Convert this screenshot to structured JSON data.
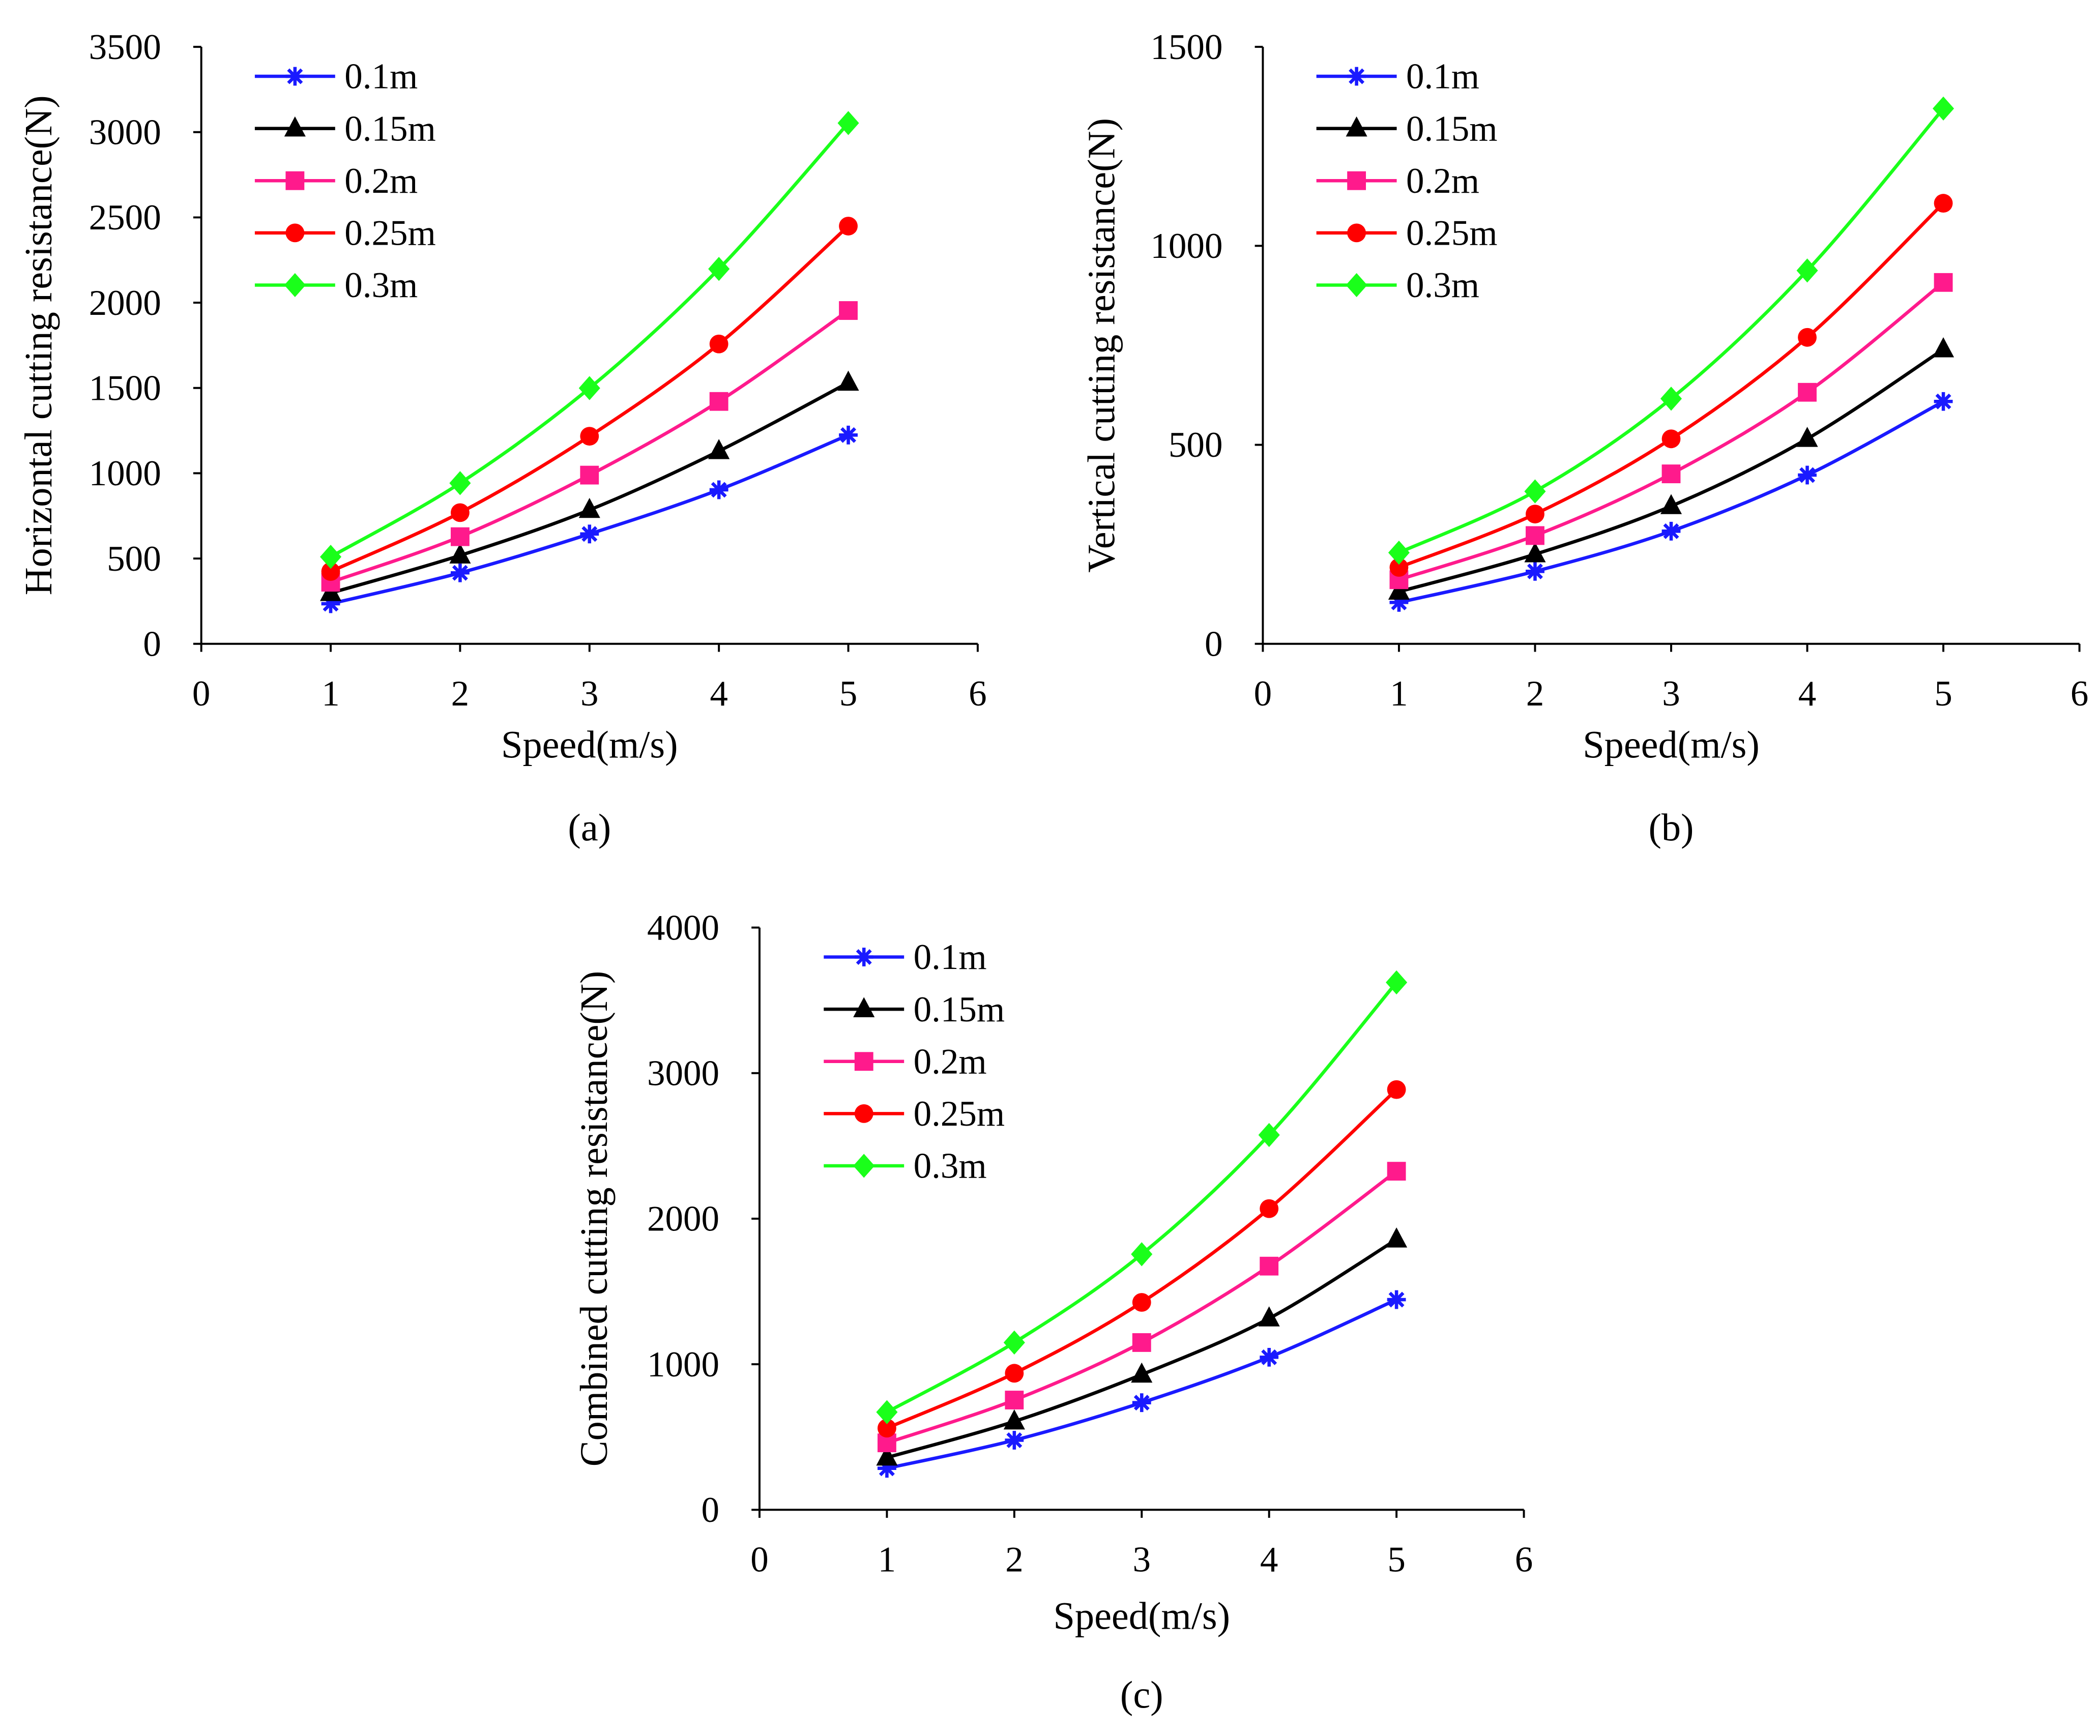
{
  "series_style": [
    {
      "name": "0.1m",
      "color": "#1a1aff",
      "marker": "asterisk"
    },
    {
      "name": "0.15m",
      "color": "#000000",
      "marker": "triangle"
    },
    {
      "name": "0.2m",
      "color": "#ff1a8c",
      "marker": "square"
    },
    {
      "name": "0.25m",
      "color": "#ff0000",
      "marker": "circle"
    },
    {
      "name": "0.3m",
      "color": "#1aff1a",
      "marker": "diamond"
    }
  ],
  "chart_data": [
    {
      "type": "line",
      "panel_label": "(a)",
      "xlabel": "Speed(m/s)",
      "ylabel": "Horizontal cutting resistance(N)",
      "xlim": [
        0,
        6
      ],
      "ylim": [
        0,
        3500
      ],
      "xticks": [
        0,
        1,
        2,
        3,
        4,
        5,
        6
      ],
      "yticks": [
        0,
        500,
        1000,
        1500,
        2000,
        2500,
        3000,
        3500
      ],
      "legend_position": "top-left",
      "x": [
        1,
        2,
        3,
        4,
        5
      ],
      "series": [
        {
          "name": "0.1m",
          "values": [
            235,
            416,
            644,
            903,
            1224
          ]
        },
        {
          "name": "0.15m",
          "values": [
            298,
            518,
            785,
            1130,
            1531
          ]
        },
        {
          "name": "0.2m",
          "values": [
            361,
            628,
            989,
            1421,
            1954
          ]
        },
        {
          "name": "0.25m",
          "values": [
            424,
            769,
            1217,
            1758,
            2449
          ]
        },
        {
          "name": "0.3m",
          "values": [
            510,
            942,
            1499,
            2198,
            3053
          ]
        }
      ]
    },
    {
      "type": "line",
      "panel_label": "(b)",
      "xlabel": "Speed(m/s)",
      "ylabel": "Vertical cutting resistance(N)",
      "xlim": [
        0,
        6
      ],
      "ylim": [
        0,
        1500
      ],
      "xticks": [
        0,
        1,
        2,
        3,
        4,
        5,
        6
      ],
      "yticks": [
        0,
        500,
        1000,
        1500
      ],
      "legend_position": "top-left",
      "x": [
        1,
        2,
        3,
        4,
        5
      ],
      "series": [
        {
          "name": "0.1m",
          "values": [
            104,
            182,
            283,
            424,
            609
          ]
        },
        {
          "name": "0.15m",
          "values": [
            131,
            225,
            346,
            515,
            740
          ]
        },
        {
          "name": "0.2m",
          "values": [
            161,
            272,
            427,
            632,
            908
          ]
        },
        {
          "name": "0.25m",
          "values": [
            192,
            326,
            515,
            770,
            1107
          ]
        },
        {
          "name": "0.3m",
          "values": [
            229,
            383,
            616,
            938,
            1345
          ]
        }
      ]
    },
    {
      "type": "line",
      "panel_label": "(c)",
      "xlabel": "Speed(m/s)",
      "ylabel": "Combined cutting resistance(N)",
      "xlim": [
        0,
        6
      ],
      "ylim": [
        0,
        4000
      ],
      "xticks": [
        0,
        1,
        2,
        3,
        4,
        5,
        6
      ],
      "yticks": [
        0,
        1000,
        2000,
        3000,
        4000
      ],
      "legend_position": "top-left",
      "x": [
        1,
        2,
        3,
        4,
        5
      ],
      "series": [
        {
          "name": "0.1m",
          "values": [
            285,
            478,
            736,
            1048,
            1444
          ]
        },
        {
          "name": "0.15m",
          "values": [
            359,
            607,
            929,
            1315,
            1857
          ]
        },
        {
          "name": "0.2m",
          "values": [
            460,
            754,
            1149,
            1674,
            2326
          ]
        },
        {
          "name": "0.25m",
          "values": [
            561,
            938,
            1425,
            2069,
            2887
          ]
        },
        {
          "name": "0.3m",
          "values": [
            671,
            1149,
            1756,
            2575,
            3623
          ]
        }
      ]
    }
  ]
}
